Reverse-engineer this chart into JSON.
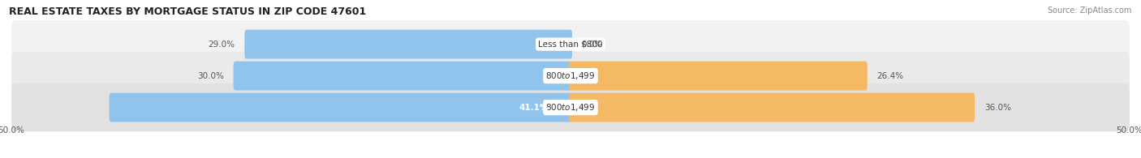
{
  "title": "REAL ESTATE TAXES BY MORTGAGE STATUS IN ZIP CODE 47601",
  "source": "Source: ZipAtlas.com",
  "rows": [
    {
      "label": "Less than $800",
      "without_mortgage": 29.0,
      "with_mortgage": 0.0,
      "wm_inside": false
    },
    {
      "label": "$800 to $1,499",
      "without_mortgage": 30.0,
      "with_mortgage": 26.4,
      "wm_inside": false
    },
    {
      "label": "$800 to $1,499",
      "without_mortgage": 41.1,
      "with_mortgage": 36.0,
      "wm_inside": true
    }
  ],
  "axis_max": 50.0,
  "color_without": "#91C4ED",
  "color_with": "#F5B863",
  "bg_colors": [
    "#F2F2F2",
    "#EAEAEA",
    "#E2E2E2"
  ],
  "title_fontsize": 9,
  "label_fontsize": 7.5,
  "tick_fontsize": 7.5
}
